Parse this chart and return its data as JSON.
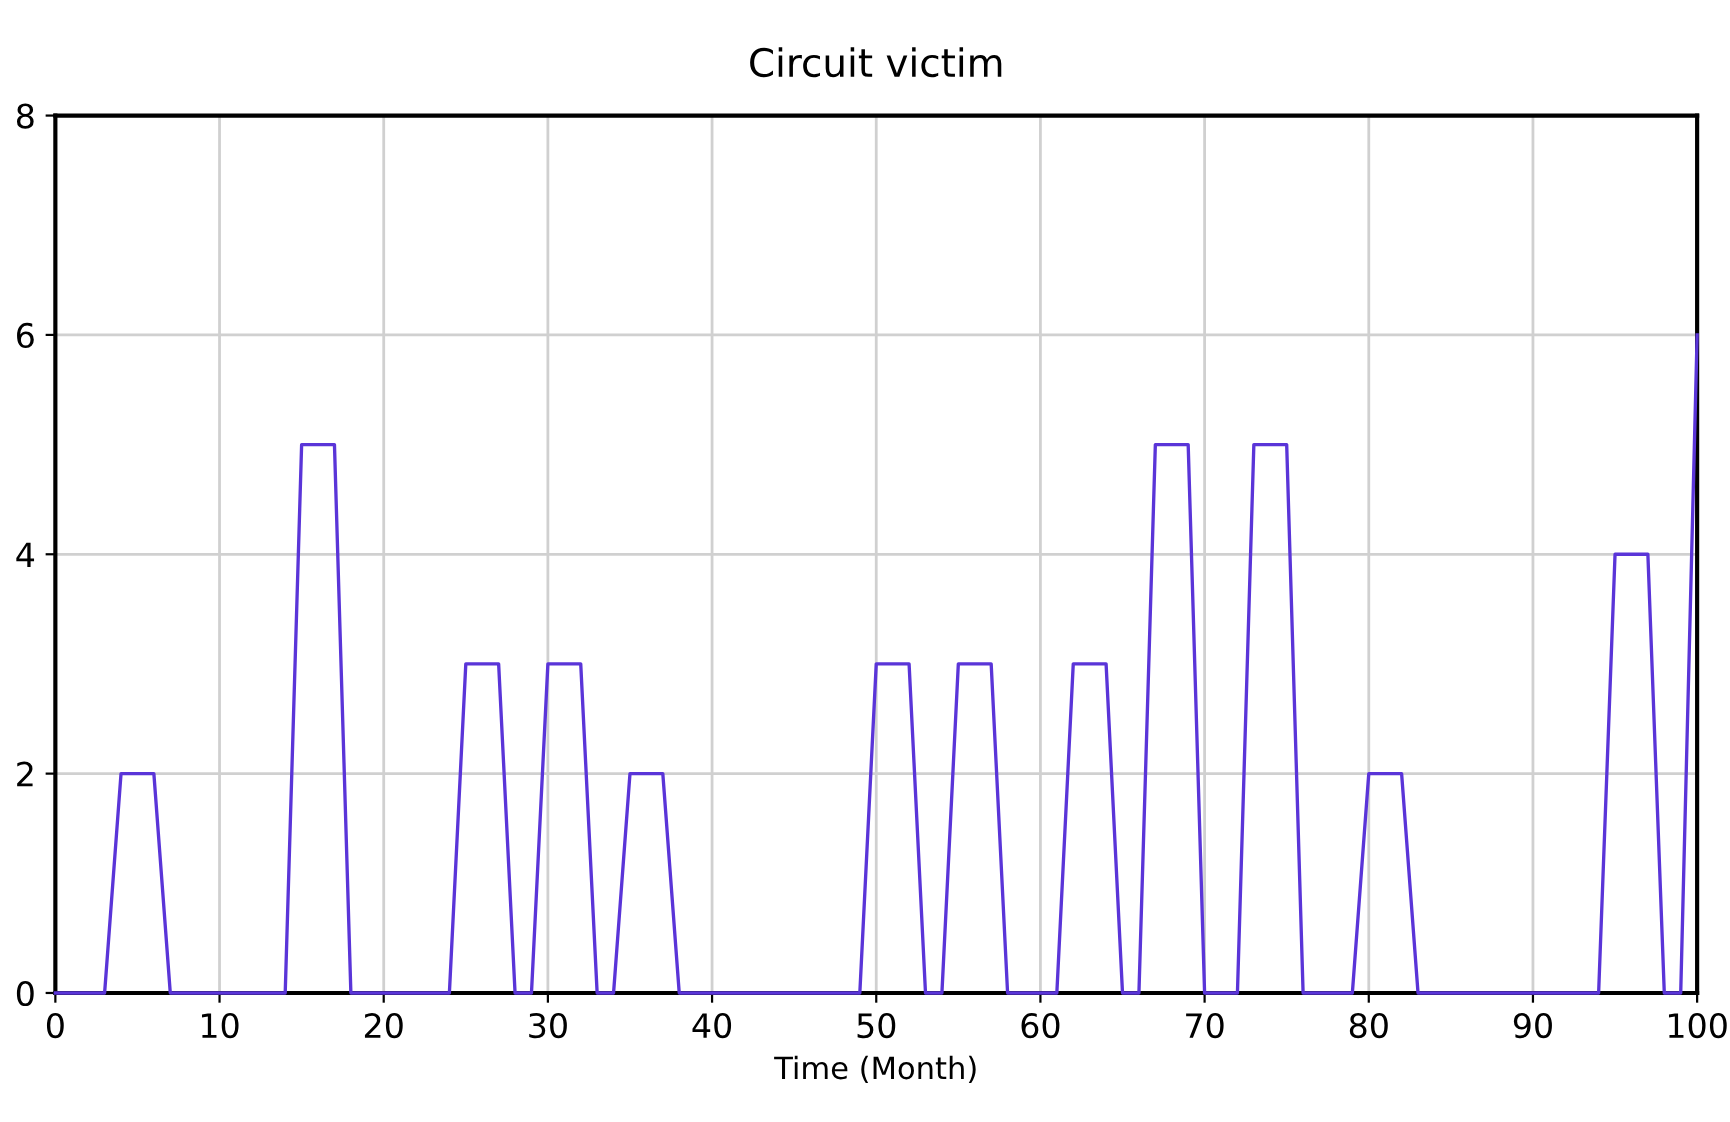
{
  "chart_data": {
    "type": "line",
    "title": "Circuit victim",
    "xlabel": "Time (Month)",
    "x": [
      0,
      1,
      2,
      3,
      4,
      5,
      6,
      7,
      8,
      9,
      10,
      11,
      12,
      13,
      14,
      15,
      16,
      17,
      18,
      19,
      20,
      21,
      22,
      23,
      24,
      25,
      26,
      27,
      28,
      29,
      30,
      31,
      32,
      33,
      34,
      35,
      36,
      37,
      38,
      39,
      40,
      41,
      42,
      43,
      44,
      45,
      46,
      47,
      48,
      49,
      50,
      51,
      52,
      53,
      54,
      55,
      56,
      57,
      58,
      59,
      60,
      61,
      62,
      63,
      64,
      65,
      66,
      67,
      68,
      69,
      70,
      71,
      72,
      73,
      74,
      75,
      76,
      77,
      78,
      79,
      80,
      81,
      82,
      83,
      84,
      85,
      86,
      87,
      88,
      89,
      90,
      91,
      92,
      93,
      94,
      95,
      96,
      97,
      98,
      99,
      100
    ],
    "series": [
      {
        "color": "#5a35d8",
        "values": [
          0,
          0,
          0,
          0,
          2,
          2,
          2,
          0,
          0,
          0,
          0,
          0,
          0,
          0,
          0,
          5,
          5,
          5,
          0,
          0,
          0,
          0,
          0,
          0,
          0,
          3,
          3,
          3,
          0,
          0,
          3,
          3,
          3,
          0,
          0,
          2,
          2,
          2,
          0,
          0,
          0,
          0,
          0,
          0,
          0,
          0,
          0,
          0,
          0,
          0,
          3,
          3,
          3,
          0,
          0,
          3,
          3,
          3,
          0,
          0,
          0,
          0,
          3,
          3,
          3,
          0,
          0,
          5,
          5,
          5,
          0,
          0,
          0,
          5,
          5,
          5,
          0,
          0,
          0,
          0,
          2,
          2,
          2,
          0,
          0,
          0,
          0,
          0,
          0,
          0,
          0,
          0,
          0,
          0,
          0,
          4,
          4,
          4,
          0,
          0,
          6
        ]
      }
    ],
    "xlim": [
      0,
      100
    ],
    "xticks": [
      0,
      10,
      20,
      30,
      40,
      50,
      60,
      70,
      80,
      90,
      100
    ],
    "ylim": [
      0,
      8
    ],
    "yticks": [
      0,
      2,
      4,
      6,
      8
    ],
    "grid": true,
    "marker": "none",
    "line_style": "solid"
  }
}
